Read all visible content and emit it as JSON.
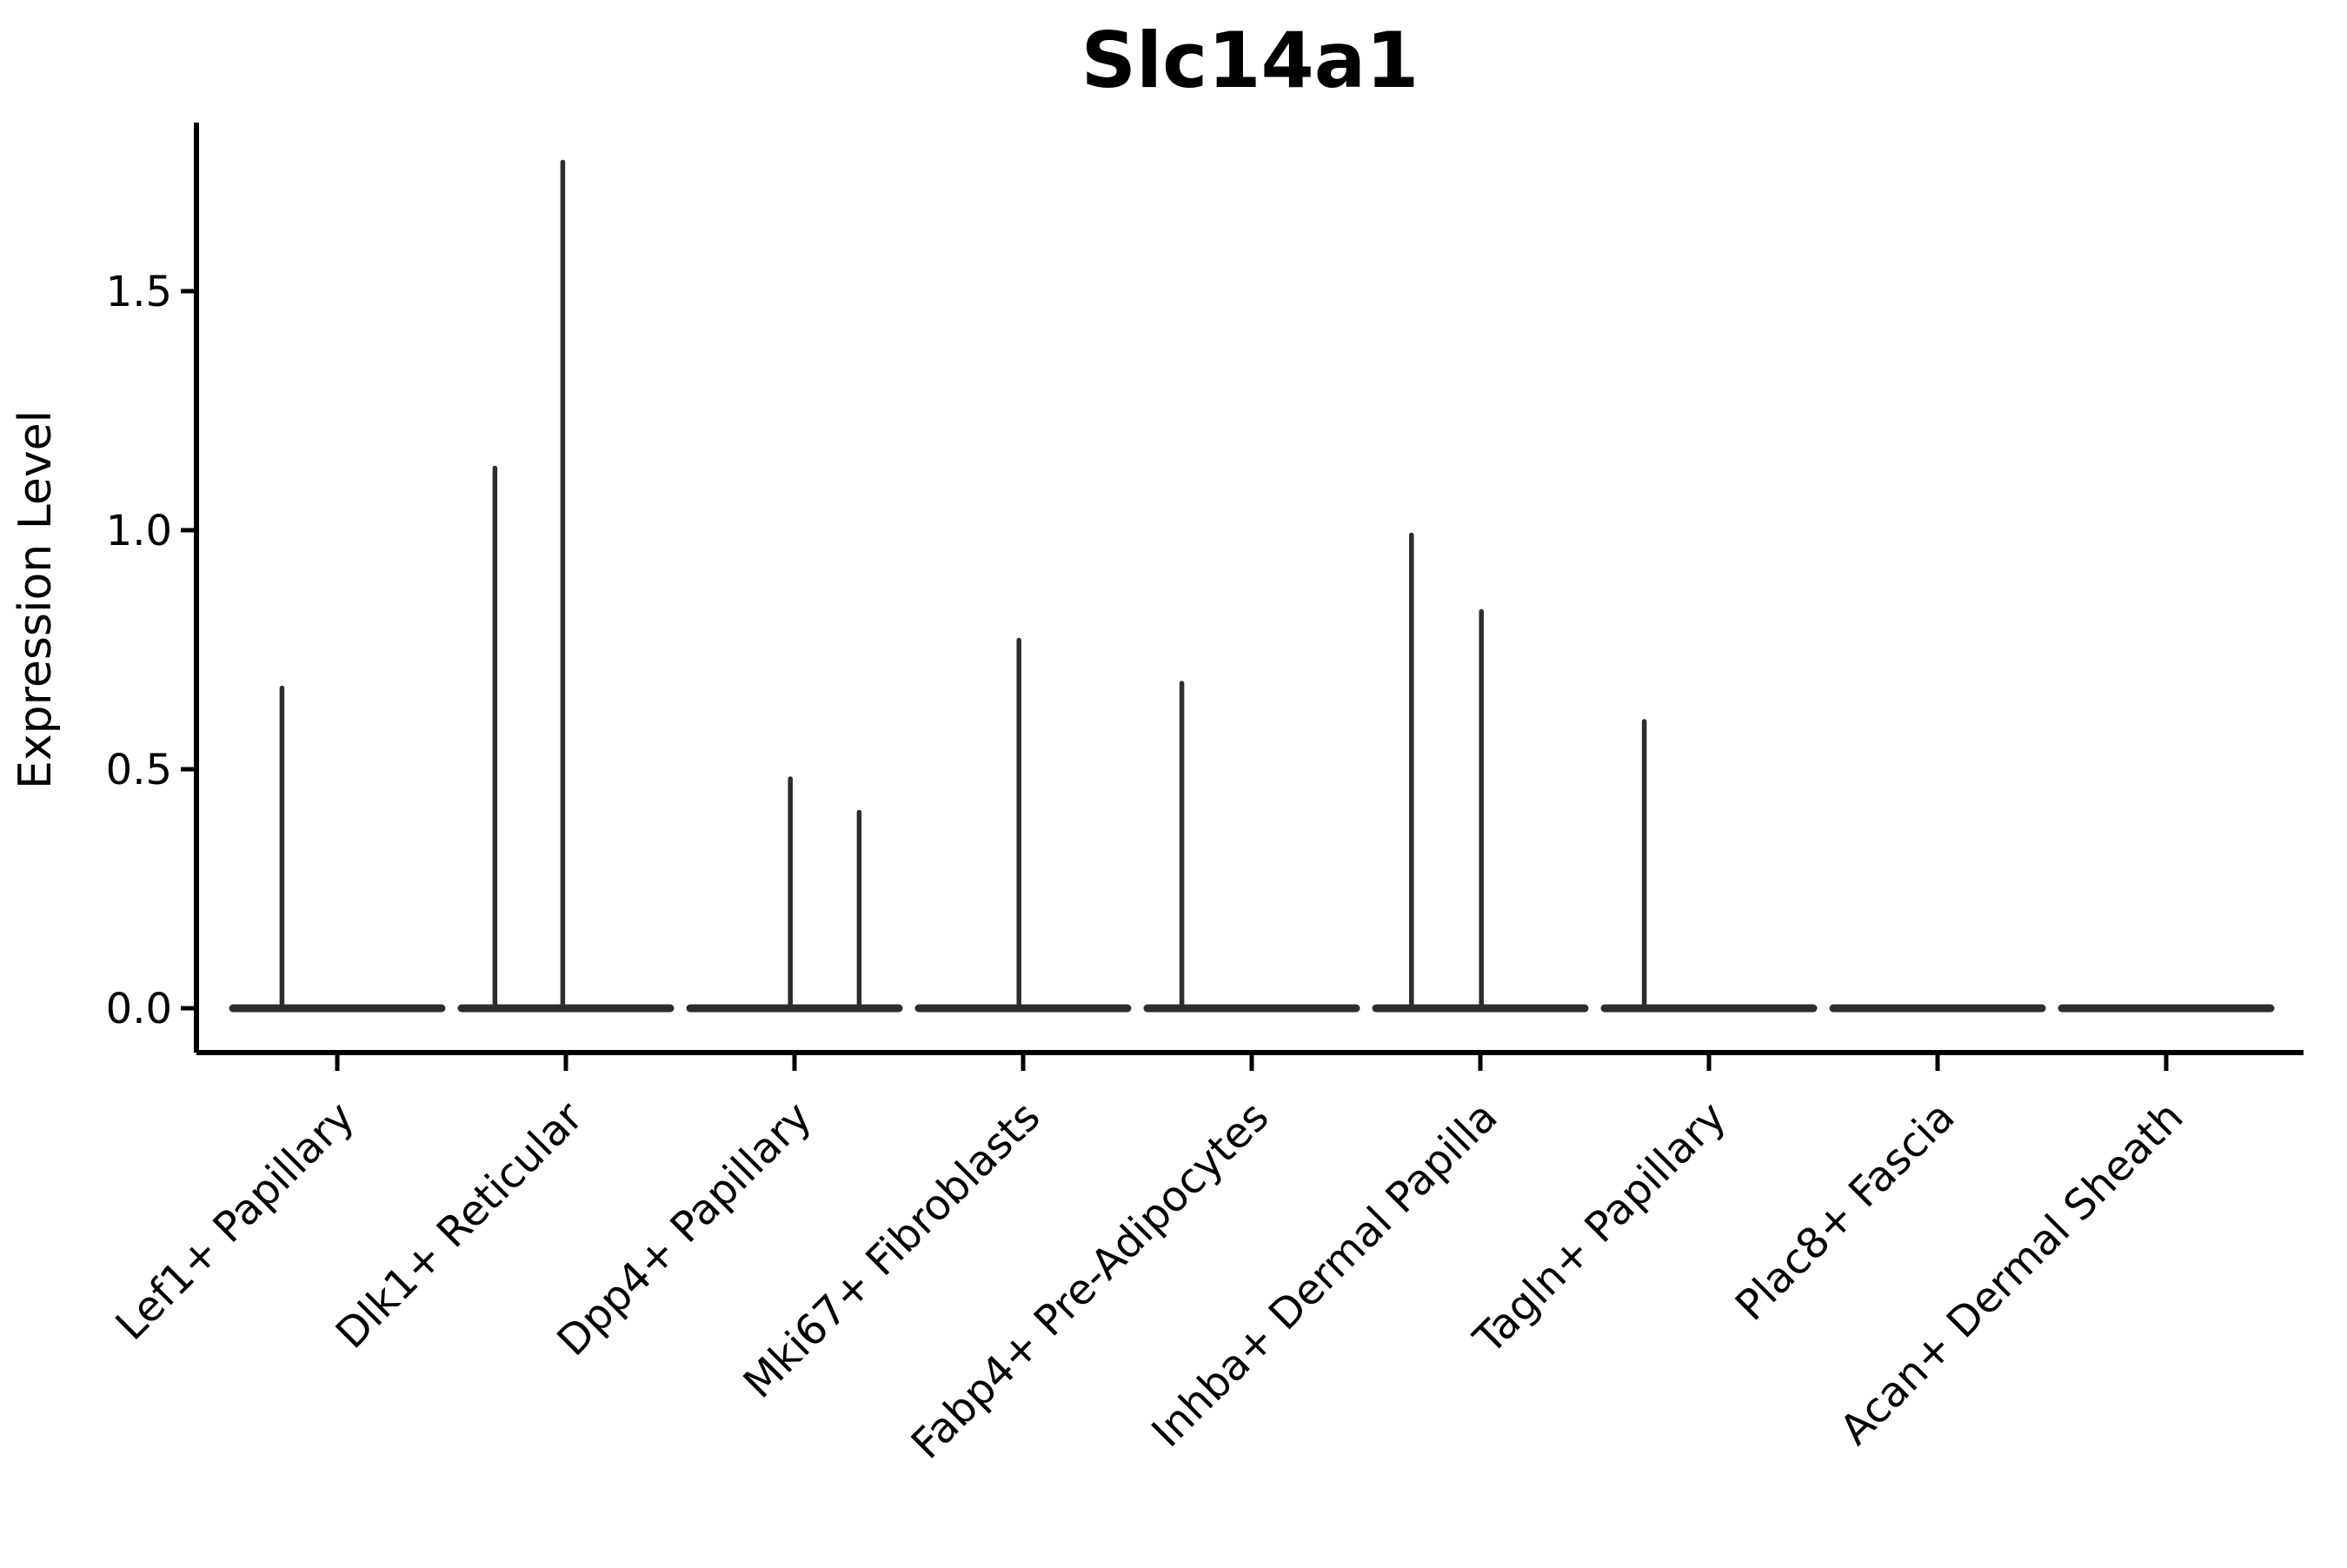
{
  "figure": {
    "background_color": "#ffffff",
    "line_color": "#2d2d2d",
    "spine_color": "#000000",
    "text_color": "#000000"
  },
  "chart_data": {
    "type": "violin",
    "title": "Slc14a1",
    "xlabel": "",
    "ylabel": "Expression Level",
    "grid": false,
    "legend": null,
    "ylim": [
      -0.09,
      1.86
    ],
    "yticks": [
      0.0,
      0.5,
      1.0,
      1.5
    ],
    "ytick_labels": [
      "0.0",
      "0.5",
      "1.0",
      "1.5"
    ],
    "x_tick_rotation_deg": 45,
    "categories": [
      "Lef1+ Papillary",
      "Dlk1+ Reticular",
      "Dpp4+ Papillary",
      "Mki67+ Fibroblasts",
      "Fabp4+ Pre-Adipocytes",
      "Inhba+ Dermal Papilla",
      "Tagln+ Papillary",
      "Plac8+ Fascia",
      "Acan+ Dermal Sheath"
    ],
    "violins": [
      {
        "category": "Lef1+ Papillary",
        "baseline_value": 0.0,
        "max_value": 0.67,
        "spikes": [
          {
            "value": 0.67,
            "offset_frac": -0.53
          }
        ]
      },
      {
        "category": "Dlk1+ Reticular",
        "baseline_value": 0.0,
        "max_value": 1.77,
        "spikes": [
          {
            "value": 1.13,
            "offset_frac": -0.68
          },
          {
            "value": 1.77,
            "offset_frac": -0.03
          }
        ]
      },
      {
        "category": "Dpp4+ Papillary",
        "baseline_value": 0.0,
        "max_value": 0.48,
        "spikes": [
          {
            "value": 0.48,
            "offset_frac": -0.04
          },
          {
            "value": 0.41,
            "offset_frac": 0.62
          }
        ]
      },
      {
        "category": "Mki67+ Fibroblasts",
        "baseline_value": 0.0,
        "max_value": 0.77,
        "spikes": [
          {
            "value": 0.77,
            "offset_frac": -0.04
          }
        ]
      },
      {
        "category": "Fabp4+ Pre-Adipocytes",
        "baseline_value": 0.0,
        "max_value": 0.68,
        "spikes": [
          {
            "value": 0.68,
            "offset_frac": -0.67
          }
        ]
      },
      {
        "category": "Inhba+ Dermal Papilla",
        "baseline_value": 0.0,
        "max_value": 0.99,
        "spikes": [
          {
            "value": 0.99,
            "offset_frac": -0.66
          },
          {
            "value": 0.83,
            "offset_frac": 0.01
          }
        ]
      },
      {
        "category": "Tagln+ Papillary",
        "baseline_value": 0.0,
        "max_value": 0.6,
        "spikes": [
          {
            "value": 0.6,
            "offset_frac": -0.62
          }
        ]
      },
      {
        "category": "Plac8+ Fascia",
        "baseline_value": 0.0,
        "max_value": 0.0,
        "spikes": []
      },
      {
        "category": "Acan+ Dermal Sheath",
        "baseline_value": 0.0,
        "max_value": 0.0,
        "spikes": []
      }
    ]
  }
}
